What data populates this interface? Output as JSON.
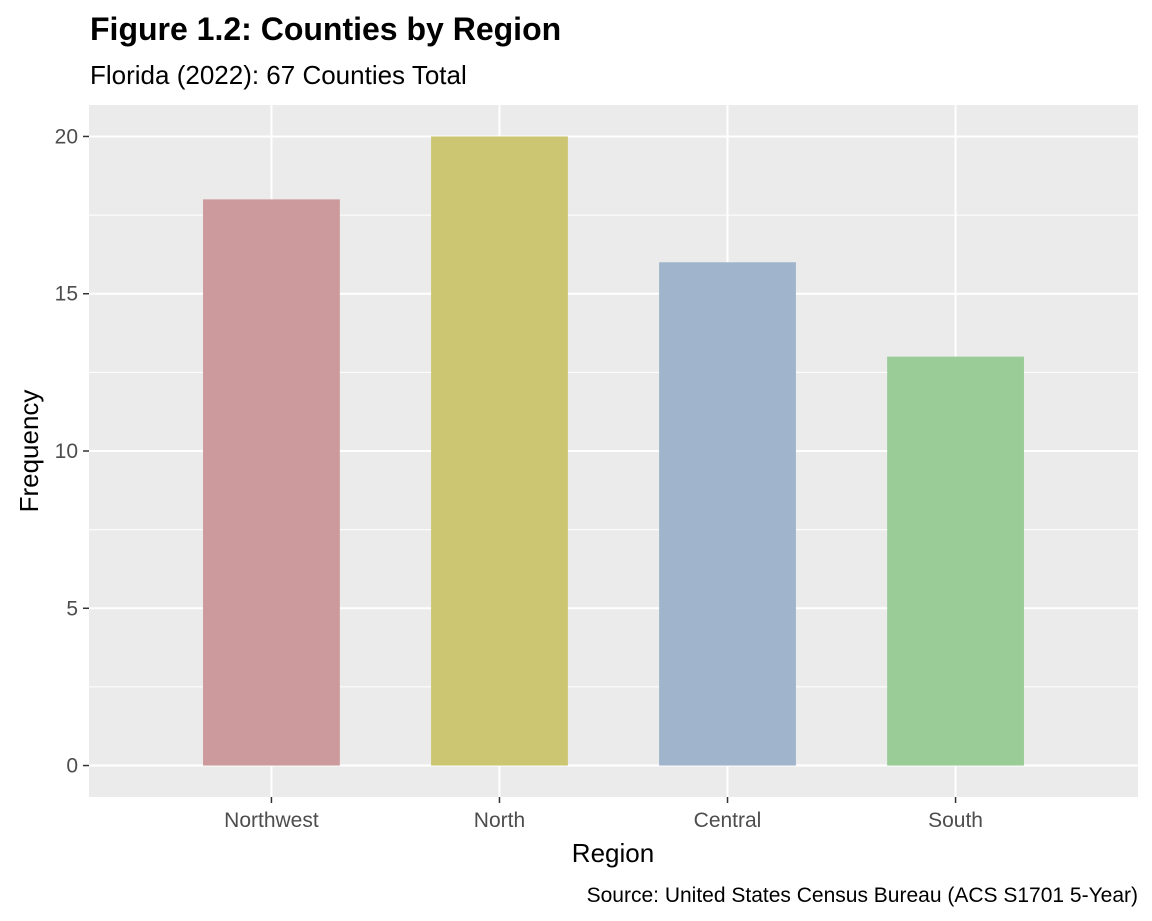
{
  "chart_data": {
    "type": "bar",
    "title": "Figure 1.2: Counties by Region",
    "subtitle": "Florida (2022): 67 Counties Total",
    "xlabel": "Region",
    "ylabel": "Frequency",
    "caption": "Source: United States Census Bureau (ACS S1701 5-Year)",
    "categories": [
      "Northwest",
      "North",
      "Central",
      "South"
    ],
    "values": [
      18,
      20,
      16,
      13
    ],
    "colors": [
      "#cc9a9c",
      "#ccc673",
      "#a0b4cc",
      "#9acc98"
    ],
    "ylim": [
      -1,
      21
    ],
    "yticks": [
      0,
      5,
      10,
      15,
      20
    ],
    "ytick_labels": [
      "0",
      "5",
      "10",
      "15",
      "20"
    ],
    "grid": true,
    "panel_background": "#ebebeb",
    "gridline_color": "#ffffff",
    "legend": "none"
  }
}
